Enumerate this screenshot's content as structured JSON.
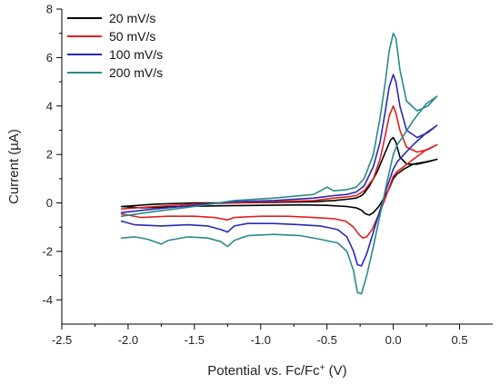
{
  "chart_data": {
    "type": "line",
    "title": "",
    "xlabel": "Potential vs. Fc/Fc",
    "xlabel_superscript": "+",
    "xlabel_unit": " (V)",
    "ylabel": "Current (µA)",
    "xlim": [
      -2.5,
      0.75
    ],
    "ylim": [
      -5,
      8
    ],
    "xticks": [
      -2.5,
      -2.0,
      -1.5,
      -1.0,
      -0.5,
      0.0,
      0.5
    ],
    "xtick_labels": [
      "-2.5",
      "-2.0",
      "-1.5",
      "-1.0",
      "-0.5",
      "0.0",
      "0.5"
    ],
    "yticks": [
      -4,
      -2,
      0,
      2,
      4,
      6,
      8
    ],
    "ytick_labels": [
      "-4",
      "-2",
      "0",
      "2",
      "4",
      "6",
      "8"
    ],
    "grid": false,
    "legend_position": "top-left",
    "series": [
      {
        "name": "20 mV/s",
        "color": "#000000",
        "x": [
          -2.05,
          -1.8,
          -1.5,
          -1.2,
          -0.9,
          -0.6,
          -0.45,
          -0.35,
          -0.28,
          -0.24,
          -0.22,
          -0.18,
          -0.12,
          -0.06,
          -0.02,
          0.0,
          0.02,
          0.05,
          0.1,
          0.18,
          0.26,
          0.33,
          0.33,
          0.25,
          0.15,
          0.08,
          0.03,
          0.0,
          -0.03,
          -0.07,
          -0.11,
          -0.15,
          -0.18,
          -0.21,
          -0.24,
          -0.28,
          -0.35,
          -0.5,
          -0.7,
          -1.0,
          -1.3,
          -1.6,
          -1.9,
          -2.05
        ],
        "y": [
          -0.15,
          -0.05,
          0.0,
          0.0,
          0.02,
          0.05,
          0.1,
          0.15,
          0.2,
          0.3,
          0.4,
          0.7,
          1.3,
          2.1,
          2.6,
          2.7,
          2.5,
          1.9,
          1.6,
          1.6,
          1.7,
          1.8,
          1.8,
          1.7,
          1.6,
          1.4,
          1.2,
          1.0,
          0.6,
          0.2,
          -0.15,
          -0.4,
          -0.5,
          -0.45,
          -0.3,
          -0.2,
          -0.15,
          -0.1,
          -0.08,
          -0.1,
          -0.12,
          -0.15,
          -0.2,
          -0.15
        ]
      },
      {
        "name": "50 mV/s",
        "color": "#e02020",
        "x": [
          -2.05,
          -1.8,
          -1.5,
          -1.2,
          -0.9,
          -0.6,
          -0.45,
          -0.35,
          -0.28,
          -0.22,
          -0.15,
          -0.1,
          -0.06,
          -0.03,
          0.0,
          0.02,
          0.05,
          0.1,
          0.18,
          0.26,
          0.33,
          0.33,
          0.25,
          0.15,
          0.08,
          0.03,
          0.0,
          -0.04,
          -0.08,
          -0.12,
          -0.16,
          -0.2,
          -0.23,
          -0.26,
          -0.3,
          -0.36,
          -0.45,
          -0.6,
          -0.8,
          -1.0,
          -1.2,
          -1.25,
          -1.35,
          -1.5,
          -1.7,
          -1.9,
          -2.05
        ],
        "y": [
          -0.25,
          -0.15,
          -0.05,
          0.0,
          0.05,
          0.1,
          0.2,
          0.25,
          0.3,
          0.5,
          1.0,
          1.8,
          2.8,
          3.6,
          4.0,
          3.7,
          3.0,
          2.3,
          2.1,
          2.2,
          2.4,
          2.4,
          2.2,
          1.8,
          1.5,
          1.3,
          1.1,
          0.5,
          -0.1,
          -0.6,
          -1.1,
          -1.4,
          -1.45,
          -1.3,
          -1.0,
          -0.75,
          -0.65,
          -0.6,
          -0.55,
          -0.55,
          -0.6,
          -0.7,
          -0.6,
          -0.55,
          -0.55,
          -0.6,
          -0.45
        ]
      },
      {
        "name": "100 mV/s",
        "color": "#2a2ab0",
        "x": [
          -2.05,
          -1.8,
          -1.5,
          -1.2,
          -0.9,
          -0.6,
          -0.45,
          -0.35,
          -0.28,
          -0.22,
          -0.15,
          -0.1,
          -0.06,
          -0.03,
          0.0,
          0.02,
          0.05,
          0.1,
          0.18,
          0.26,
          0.33,
          0.33,
          0.25,
          0.15,
          0.08,
          0.03,
          0.0,
          -0.05,
          -0.1,
          -0.15,
          -0.2,
          -0.24,
          -0.27,
          -0.3,
          -0.35,
          -0.42,
          -0.55,
          -0.7,
          -0.9,
          -1.1,
          -1.2,
          -1.25,
          -1.3,
          -1.4,
          -1.55,
          -1.75,
          -1.95,
          -2.05
        ],
        "y": [
          -0.4,
          -0.25,
          -0.1,
          0.05,
          0.1,
          0.2,
          0.3,
          0.35,
          0.45,
          0.7,
          1.5,
          2.5,
          3.8,
          4.8,
          5.3,
          5.0,
          4.0,
          3.0,
          2.7,
          2.9,
          3.2,
          3.2,
          2.9,
          2.4,
          2.0,
          1.7,
          1.4,
          0.6,
          -0.3,
          -1.2,
          -2.1,
          -2.6,
          -2.55,
          -2.0,
          -1.4,
          -1.1,
          -0.95,
          -0.9,
          -0.85,
          -0.85,
          -0.95,
          -1.2,
          -1.1,
          -0.95,
          -0.9,
          -0.95,
          -0.9,
          -0.75
        ]
      },
      {
        "name": "200 mV/s",
        "color": "#2a8a8a",
        "x": [
          -2.05,
          -1.8,
          -1.5,
          -1.2,
          -0.9,
          -0.6,
          -0.5,
          -0.45,
          -0.35,
          -0.28,
          -0.22,
          -0.15,
          -0.1,
          -0.06,
          -0.03,
          0.0,
          0.02,
          0.05,
          0.1,
          0.18,
          0.26,
          0.33,
          0.33,
          0.25,
          0.15,
          0.08,
          0.03,
          0.0,
          -0.05,
          -0.1,
          -0.15,
          -0.2,
          -0.24,
          -0.27,
          -0.3,
          -0.35,
          -0.42,
          -0.55,
          -0.7,
          -0.9,
          -1.1,
          -1.2,
          -1.25,
          -1.3,
          -1.4,
          -1.55,
          -1.7,
          -1.75,
          -1.85,
          -1.95,
          -2.05
        ],
        "y": [
          -0.55,
          -0.35,
          -0.15,
          0.1,
          0.2,
          0.35,
          0.65,
          0.5,
          0.55,
          0.65,
          1.0,
          2.0,
          3.5,
          5.0,
          6.3,
          7.0,
          6.8,
          5.5,
          4.2,
          3.8,
          4.0,
          4.4,
          4.4,
          4.1,
          3.4,
          2.8,
          2.4,
          2.0,
          0.8,
          -0.5,
          -1.8,
          -3.0,
          -3.75,
          -3.7,
          -2.8,
          -2.0,
          -1.65,
          -1.5,
          -1.35,
          -1.3,
          -1.35,
          -1.55,
          -1.8,
          -1.6,
          -1.45,
          -1.4,
          -1.55,
          -1.7,
          -1.5,
          -1.4,
          -1.45
        ]
      }
    ]
  }
}
